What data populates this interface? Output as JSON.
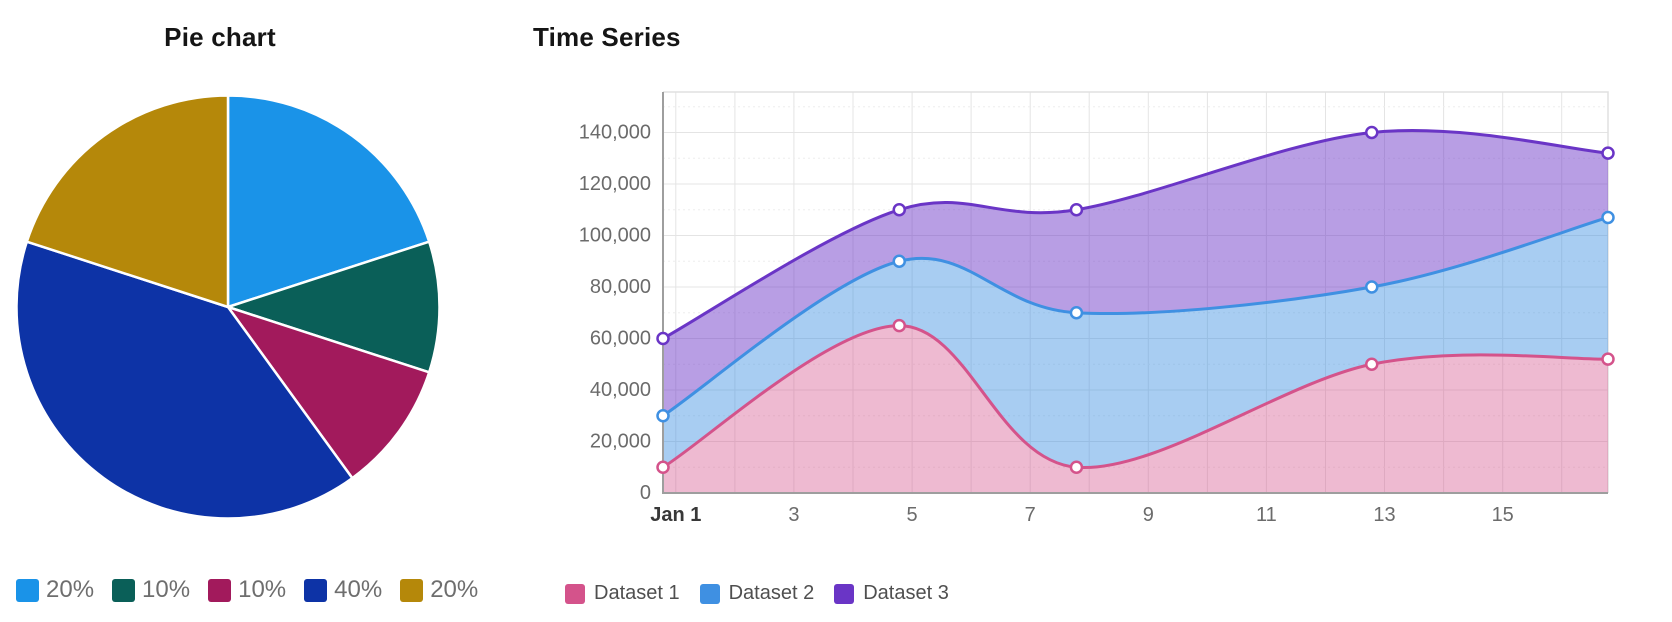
{
  "page": {
    "background": "#ffffff"
  },
  "chart_data": [
    {
      "type": "pie",
      "title": "Pie chart",
      "direction": "clockwise",
      "start_angle_deg": 0,
      "slice_border_color": "#ffffff",
      "legend_position": "bottom",
      "slices": [
        {
          "label": "20%",
          "value": 20,
          "color": "#1a93e8"
        },
        {
          "label": "10%",
          "value": 10,
          "color": "#0a5f58"
        },
        {
          "label": "10%",
          "value": 10,
          "color": "#a21a5c"
        },
        {
          "label": "40%",
          "value": 40,
          "color": "#0d33a6"
        },
        {
          "label": "20%",
          "value": 20,
          "color": "#b5880a"
        }
      ]
    },
    {
      "type": "area",
      "title": "Time Series",
      "legend_position": "bottom",
      "x": [
        1,
        5,
        8,
        13,
        17
      ],
      "series": [
        {
          "name": "Dataset 1",
          "color": "#d4538b",
          "fill": "rgba(212,83,139,0.40)",
          "values": [
            10000,
            65000,
            10000,
            50000,
            52000
          ]
        },
        {
          "name": "Dataset 2",
          "color": "#3f90e2",
          "fill": "rgba(63,144,226,0.45)",
          "values": [
            30000,
            90000,
            70000,
            80000,
            107000
          ]
        },
        {
          "name": "Dataset 3",
          "color": "#6a35c6",
          "fill": "rgba(106,53,198,0.48)",
          "values": [
            60000,
            110000,
            110000,
            140000,
            132000
          ]
        }
      ],
      "x_axis": {
        "range_days": [
          1,
          17
        ],
        "gridline_every_day": true,
        "ticks": [
          {
            "day": 1,
            "label": "Jan 1",
            "bold": true
          },
          {
            "day": 3,
            "label": "3"
          },
          {
            "day": 5,
            "label": "5"
          },
          {
            "day": 7,
            "label": "7"
          },
          {
            "day": 9,
            "label": "9"
          },
          {
            "day": 11,
            "label": "11"
          },
          {
            "day": 13,
            "label": "13"
          },
          {
            "day": 15,
            "label": "15"
          }
        ]
      },
      "y_axis": {
        "min": 0,
        "max": 155000,
        "ticks": [
          {
            "value": 0,
            "label": "0"
          },
          {
            "value": 20000,
            "label": "20,000"
          },
          {
            "value": 40000,
            "label": "40,000"
          },
          {
            "value": 60000,
            "label": "60,000"
          },
          {
            "value": 80000,
            "label": "80,000"
          },
          {
            "value": 100000,
            "label": "100,000"
          },
          {
            "value": 120000,
            "label": "120,000"
          },
          {
            "value": 140000,
            "label": "140,000"
          }
        ]
      },
      "point_style": {
        "fill": "#ffffff",
        "radius": 5.5
      }
    }
  ]
}
